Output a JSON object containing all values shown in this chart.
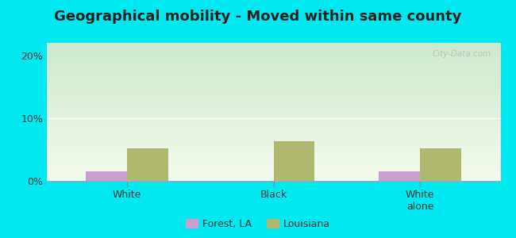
{
  "title": "Geographical mobility - Moved within same county",
  "categories": [
    "White",
    "Black",
    "White\nalone"
  ],
  "forest_la_values": [
    1.5,
    0.0,
    1.5
  ],
  "louisiana_values": [
    5.2,
    6.3,
    5.2
  ],
  "forest_la_color": "#c8a0d0",
  "louisiana_color": "#b0b870",
  "ylim": [
    0,
    22
  ],
  "yticks": [
    0,
    10,
    20
  ],
  "ytick_labels": [
    "0%",
    "10%",
    "20%"
  ],
  "bar_width": 0.28,
  "outer_bg": "#00e8f0",
  "title_fontsize": 13,
  "legend_labels": [
    "Forest, LA",
    "Louisiana"
  ],
  "watermark": "City-Data.com",
  "grad_top": "#f5fbee",
  "grad_bottom": "#cde8cc"
}
